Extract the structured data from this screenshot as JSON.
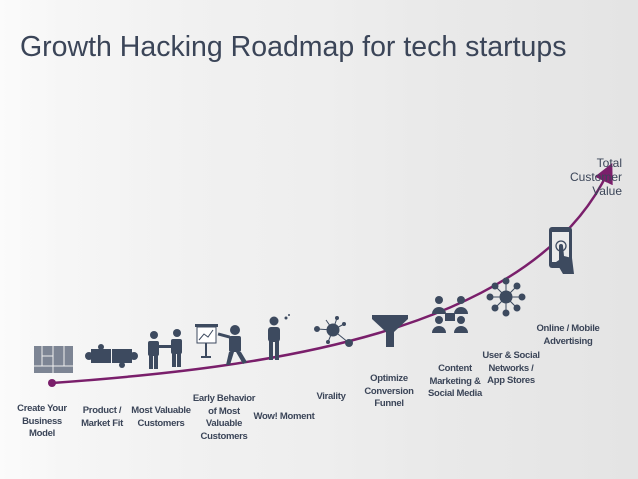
{
  "title": "Growth Hacking Roadmap for tech startups",
  "end_label": "Total\nCustomer\nValue",
  "colors": {
    "curve": "#7a1f6b",
    "icons": "#3d4a5f",
    "text": "#3b4558"
  },
  "steps": [
    {
      "label": "Create Your\nBusiness\nModel",
      "icon": "business-model-canvas-icon"
    },
    {
      "label": "Product /\nMarket Fit",
      "icon": "puzzle-icon"
    },
    {
      "label": "Most Valuable\nCustomers",
      "icon": "handshake-icon"
    },
    {
      "label": "Early Behavior\nof Most\nValuable\nCustomers",
      "icon": "presentation-icon"
    },
    {
      "label": "Wow! Moment",
      "icon": "thinking-person-icon"
    },
    {
      "label": "Virality",
      "icon": "virus-network-icon"
    },
    {
      "label": "Optimize\nConversion\nFunnel",
      "icon": "funnel-icon"
    },
    {
      "label": "Content\nMarketing &\nSocial Media",
      "icon": "people-network-icon"
    },
    {
      "label": "User & Social\nNetworks /\nApp Stores",
      "icon": "hub-network-icon"
    },
    {
      "label": "Online / Mobile\nAdvertising",
      "icon": "mobile-touch-icon"
    }
  ]
}
